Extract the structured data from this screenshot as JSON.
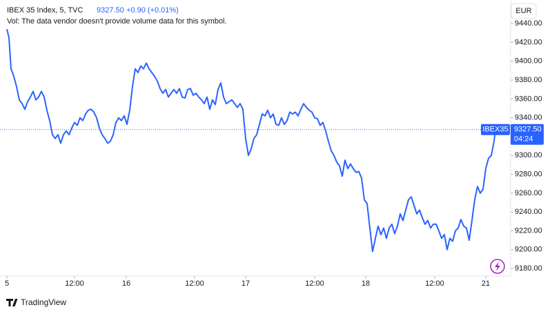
{
  "chart_data": {
    "type": "line",
    "header": {
      "symbol": "IBEX 35 Index, 5, TVC",
      "price": "9327.50",
      "change": "+0.90 (+0.01%)",
      "volume_note": "Vol: The data vendor doesn't provide volume data for this symbol."
    },
    "currency": "EUR",
    "price_tag": {
      "symbol": "IBEX35",
      "price": "9327.50",
      "countdown": "04:24"
    },
    "brand": "TradingView",
    "xlim": [
      -10,
      730
    ],
    "xticks": [
      {
        "value": 0,
        "label": "5"
      },
      {
        "value": 98,
        "label": "12:00"
      },
      {
        "value": 173,
        "label": "16"
      },
      {
        "value": 272,
        "label": "12:00"
      },
      {
        "value": 346,
        "label": "17"
      },
      {
        "value": 446,
        "label": "12:00"
      },
      {
        "value": 520,
        "label": "18"
      },
      {
        "value": 620,
        "label": "12:00"
      },
      {
        "value": 694,
        "label": "21"
      }
    ],
    "ylim": [
      9172,
      9465
    ],
    "yticks": [
      {
        "value": 9180,
        "label": "9180.00"
      },
      {
        "value": 9200,
        "label": "9200.00"
      },
      {
        "value": 9220,
        "label": "9220.00"
      },
      {
        "value": 9240,
        "label": "9240.00"
      },
      {
        "value": 9260,
        "label": "9260.00"
      },
      {
        "value": 9280,
        "label": "9280.00"
      },
      {
        "value": 9300,
        "label": "9300.00"
      },
      {
        "value": 9320,
        "label": "9320.00"
      },
      {
        "value": 9340,
        "label": "9340.00"
      },
      {
        "value": 9360,
        "label": "9360.00"
      },
      {
        "value": 9380,
        "label": "9380.00"
      },
      {
        "value": 9400,
        "label": "9400.00"
      },
      {
        "value": 9420,
        "label": "9420.00"
      },
      {
        "value": 9440,
        "label": "9440.00"
      }
    ],
    "series": [
      {
        "name": "IBEX35",
        "color": "#2962ff",
        "x": [
          0,
          3,
          6,
          10,
          14,
          18,
          22,
          26,
          30,
          34,
          38,
          42,
          46,
          50,
          54,
          58,
          62,
          66,
          70,
          74,
          78,
          82,
          86,
          90,
          94,
          98,
          102,
          106,
          110,
          114,
          118,
          122,
          126,
          130,
          134,
          138,
          142,
          146,
          150,
          154,
          158,
          162,
          166,
          170,
          174,
          178,
          182,
          186,
          190,
          194,
          198,
          202,
          206,
          210,
          214,
          218,
          222,
          226,
          230,
          234,
          238,
          242,
          246,
          250,
          254,
          258,
          262,
          266,
          270,
          274,
          278,
          282,
          286,
          290,
          294,
          298,
          302,
          306,
          310,
          314,
          318,
          322,
          326,
          330,
          334,
          338,
          342,
          346,
          350,
          354,
          358,
          362,
          366,
          370,
          374,
          378,
          382,
          386,
          390,
          394,
          398,
          402,
          406,
          410,
          414,
          418,
          422,
          426,
          430,
          434,
          438,
          442,
          446,
          450,
          454,
          458,
          462,
          466,
          470,
          474,
          478,
          482,
          486,
          490,
          494,
          498,
          502,
          506,
          510,
          514,
          518,
          522,
          526,
          530,
          534,
          538,
          542,
          546,
          550,
          554,
          558,
          562,
          566,
          570,
          574,
          578,
          582,
          586,
          590,
          594,
          598,
          602,
          606,
          610,
          614,
          618,
          622,
          626,
          630,
          634,
          638,
          642,
          646,
          650,
          654,
          658,
          662,
          666,
          670,
          674,
          678,
          682,
          686,
          690,
          694,
          698,
          702,
          706,
          708
        ],
        "values": [
          9434,
          9425,
          9392,
          9384,
          9373,
          9359,
          9355,
          9349,
          9357,
          9362,
          9368,
          9359,
          9362,
          9368,
          9362,
          9348,
          9337,
          9322,
          9318,
          9322,
          9313,
          9322,
          9326,
          9322,
          9329,
          9335,
          9332,
          9340,
          9337,
          9344,
          9348,
          9349,
          9346,
          9340,
          9329,
          9322,
          9318,
          9313,
          9315,
          9322,
          9335,
          9340,
          9337,
          9342,
          9333,
          9348,
          9373,
          9392,
          9388,
          9395,
          9392,
          9398,
          9392,
          9388,
          9384,
          9379,
          9371,
          9366,
          9370,
          9362,
          9366,
          9370,
          9366,
          9371,
          9362,
          9361,
          9370,
          9371,
          9364,
          9366,
          9362,
          9359,
          9355,
          9362,
          9349,
          9359,
          9354,
          9370,
          9377,
          9362,
          9355,
          9357,
          9359,
          9355,
          9351,
          9355,
          9349,
          9318,
          9300,
          9307,
          9318,
          9322,
          9333,
          9344,
          9342,
          9348,
          9340,
          9344,
          9333,
          9332,
          9340,
          9333,
          9337,
          9346,
          9344,
          9346,
          9342,
          9349,
          9355,
          9351,
          9348,
          9346,
          9340,
          9339,
          9332,
          9335,
          9326,
          9315,
          9305,
          9300,
          9293,
          9289,
          9278,
          9295,
          9286,
          9291,
          9286,
          9282,
          9283,
          9276,
          9253,
          9249,
          9223,
          9198,
          9212,
          9225,
          9216,
          9223,
          9212,
          9223,
          9227,
          9217,
          9225,
          9238,
          9231,
          9242,
          9253,
          9256,
          9247,
          9238,
          9242,
          9234,
          9227,
          9231,
          9223,
          9227,
          9227,
          9220,
          9212,
          9216,
          9200,
          9212,
          9209,
          9220,
          9223,
          9232,
          9225,
          9223,
          9210,
          9231,
          9253,
          9267,
          9260,
          9264,
          9286,
          9297,
          9300,
          9315,
          9327.5
        ]
      }
    ]
  }
}
